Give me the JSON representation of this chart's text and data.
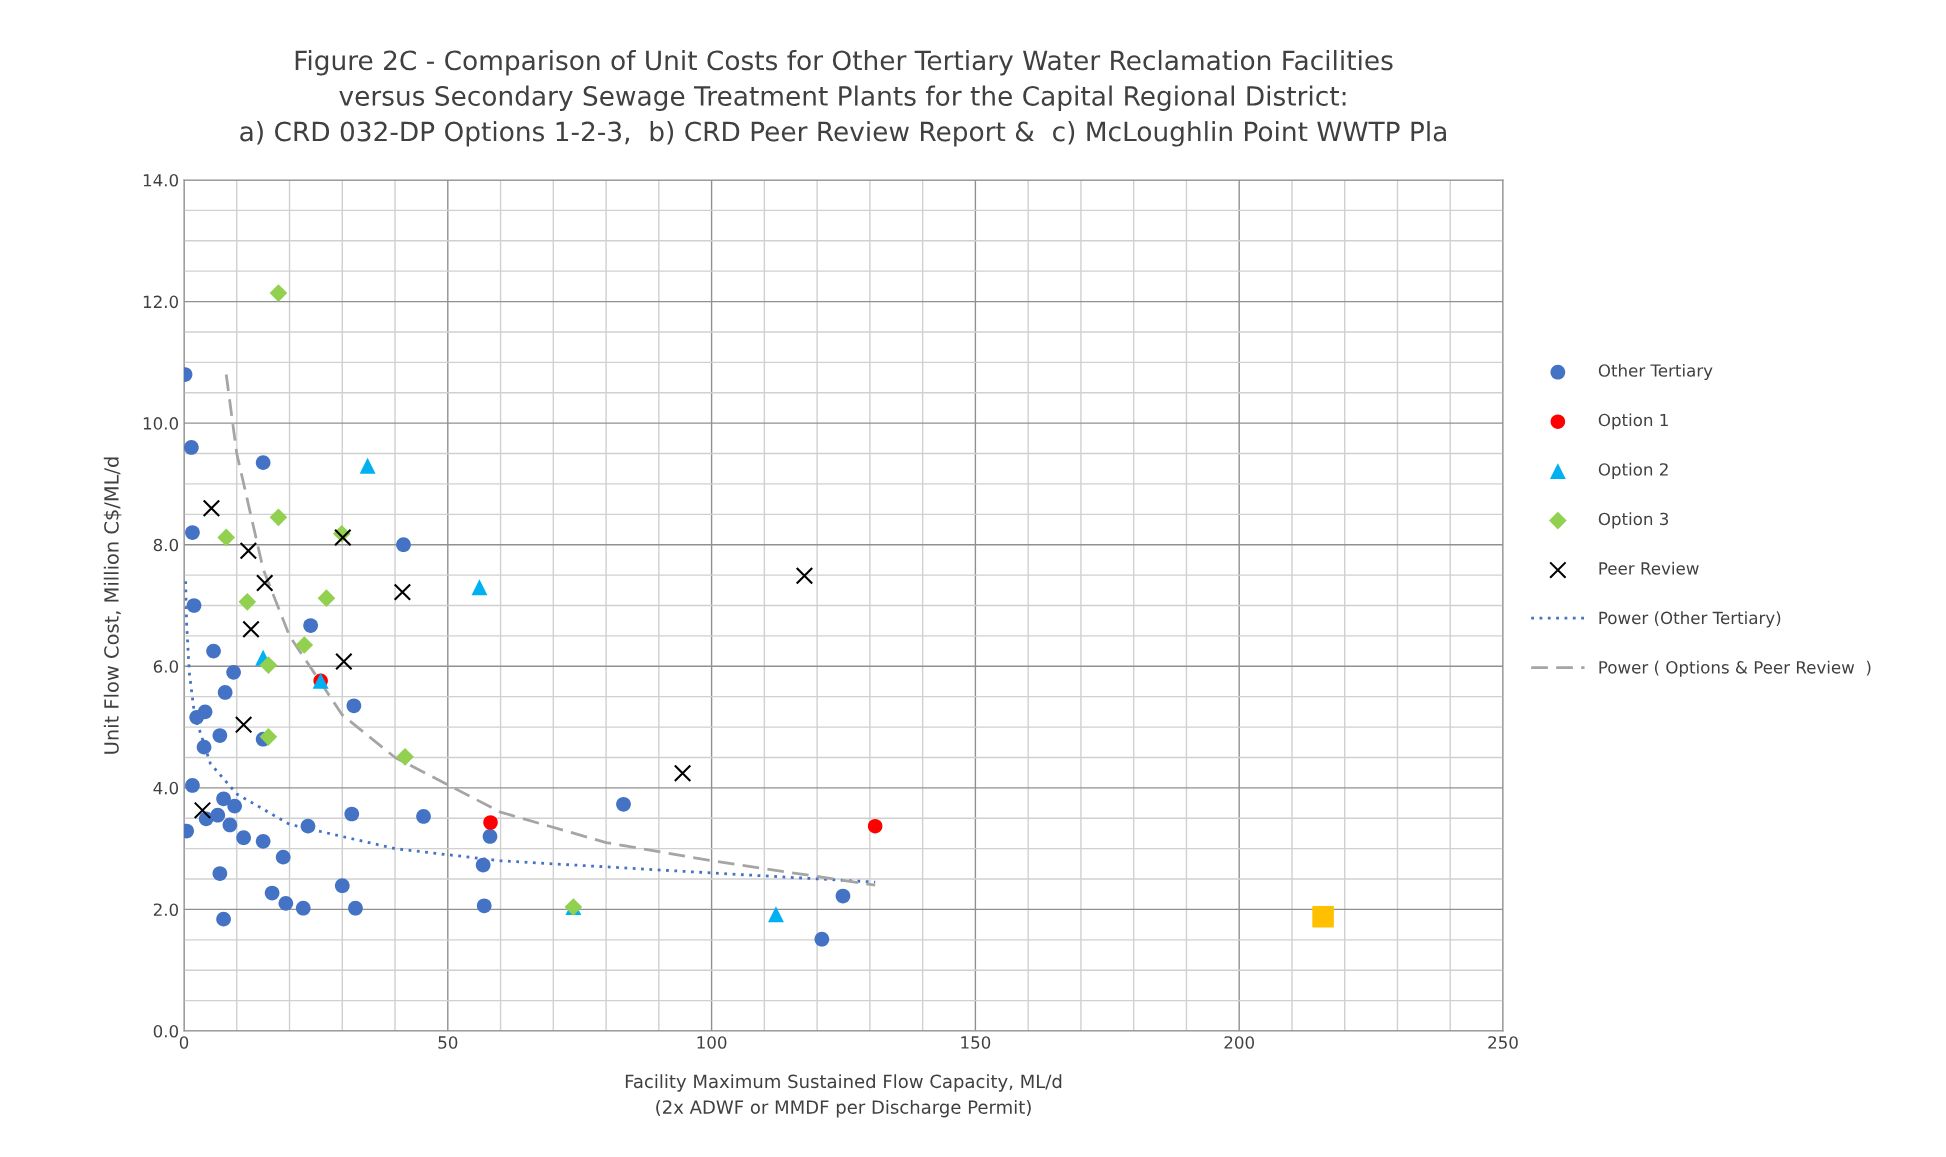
{
  "chart_data": {
    "type": "scatter",
    "title": "Figure 2C - Comparison of Unit Costs for Other Tertiary Water Reclamation Facilities\nversus Secondary Sewage Treatment Plants for the Capital Regional District:\na) CRD 032-DP Options 1-2-3,  b) CRD Peer Review Report &  c) McLoughlin Point WWTP Pla",
    "xlabel": "Facility Maximum Sustained Flow Capacity, ML/d\n(2x ADWF or MMDF per Discharge Permit)",
    "ylabel": "Unit Flow Cost, Million C$/ML/d",
    "xlim": [
      0,
      250
    ],
    "xticks": [
      0,
      50,
      100,
      150,
      200,
      250
    ],
    "ylim": [
      0,
      14
    ],
    "yticks": [
      {
        "value": 0,
        "label": "0.0"
      },
      {
        "value": 2,
        "label": "2.0"
      },
      {
        "value": 4,
        "label": "4.0"
      },
      {
        "value": 6,
        "label": "6.0"
      },
      {
        "value": 8,
        "label": "8.0"
      },
      {
        "value": 10,
        "label": "10.0"
      },
      {
        "value": 12,
        "label": "12.0"
      },
      {
        "value": 14,
        "label": "14.0"
      }
    ],
    "grid": true,
    "legend": "right",
    "series": [
      {
        "name": "Other Tertiary",
        "color": "#4472c4",
        "marker": "circle",
        "x": [
          0.2,
          1.4,
          15,
          1.6,
          41.6,
          1.9,
          24,
          5.6,
          9.4,
          7.8,
          32.2,
          2.4,
          4,
          6.8,
          3.8,
          15,
          1.6,
          7.5,
          9.6,
          4.2,
          6.4,
          8.7,
          0.5,
          11.3,
          15,
          23.5,
          31.8,
          45.4,
          58,
          18.8,
          56.7,
          6.8,
          16.7,
          19.3,
          30,
          22.6,
          32.5,
          56.9,
          7.5,
          83.3,
          124.9,
          120.9
        ],
        "values": [
          10.8,
          9.6,
          9.35,
          8.2,
          8.0,
          7.0,
          6.67,
          6.25,
          5.9,
          5.57,
          5.35,
          5.16,
          5.25,
          4.86,
          4.67,
          4.8,
          4.04,
          3.82,
          3.7,
          3.49,
          3.55,
          3.39,
          3.29,
          3.18,
          3.12,
          3.37,
          3.57,
          3.53,
          3.2,
          2.86,
          2.73,
          2.59,
          2.27,
          2.1,
          2.39,
          2.02,
          2.02,
          2.06,
          1.84,
          3.73,
          2.22,
          1.51
        ]
      },
      {
        "name": "Option 1",
        "color": "#ff0000",
        "marker": "circle",
        "x": [
          25.9,
          58.1,
          131
        ],
        "values": [
          5.76,
          3.43,
          3.37
        ]
      },
      {
        "name": "Option 2",
        "color": "#00b0f0",
        "marker": "triangle",
        "x": [
          34.8,
          56,
          15,
          25.9,
          73.8,
          112.2
        ],
        "values": [
          9.3,
          7.3,
          6.14,
          5.76,
          2.04,
          1.92
        ]
      },
      {
        "name": "Option 3",
        "color": "#92d050",
        "marker": "diamond",
        "x": [
          17.9,
          17.9,
          8,
          29.9,
          12,
          27,
          22.8,
          16,
          16,
          41.9,
          73.8
        ],
        "values": [
          12.14,
          8.45,
          8.12,
          8.18,
          7.06,
          7.12,
          6.35,
          6.02,
          4.84,
          4.51,
          2.04
        ]
      },
      {
        "name": "Peer Review",
        "color": "#000000",
        "marker": "cross",
        "x": [
          5.2,
          12.2,
          30.1,
          15.3,
          41.4,
          117.6,
          12.7,
          30.3,
          11.3,
          94.5,
          3.5
        ],
        "values": [
          8.6,
          7.9,
          8.12,
          7.37,
          7.22,
          7.49,
          6.61,
          6.08,
          5.04,
          4.24,
          3.63
        ]
      },
      {
        "color": "#ffc000",
        "marker": "square",
        "x": [
          215.9
        ],
        "values": [
          1.88
        ]
      },
      {
        "name": "Power (Other Tertiary)",
        "type": "line",
        "color": "#4472c4",
        "line_style": "dotted",
        "x": [
          0.3,
          0.5,
          1,
          2,
          5,
          10,
          20,
          40,
          60,
          100,
          131
        ],
        "values": [
          7.4,
          6.7,
          5.9,
          5.2,
          4.4,
          3.9,
          3.4,
          3.0,
          2.8,
          2.6,
          2.45
        ]
      },
      {
        "name": "Power ( Options & Peer Review  )",
        "type": "line",
        "color": "#a5a5a5",
        "line_style": "dashed",
        "x": [
          8,
          10,
          15,
          20,
          30,
          40,
          60,
          80,
          100,
          131
        ],
        "values": [
          10.8,
          9.5,
          7.6,
          6.5,
          5.2,
          4.5,
          3.6,
          3.1,
          2.8,
          2.4
        ]
      }
    ]
  }
}
